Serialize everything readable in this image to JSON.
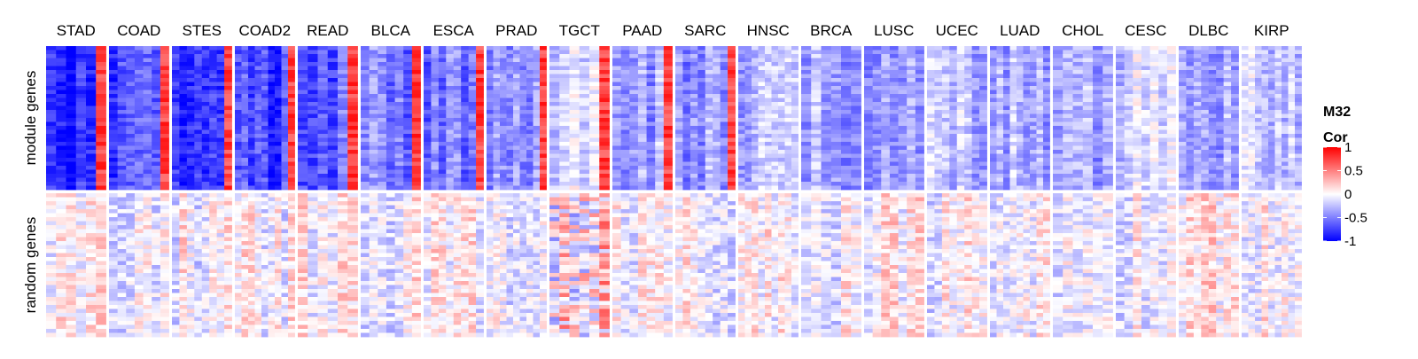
{
  "chart_data": {
    "type": "heatmap",
    "title": "",
    "columns": [
      "STAD",
      "COAD",
      "STES",
      "COAD2",
      "READ",
      "BLCA",
      "ESCA",
      "PRAD",
      "TGCT",
      "PAAD",
      "SARC",
      "HNSC",
      "BRCA",
      "LUSC",
      "UCEC",
      "LUAD",
      "CHOL",
      "CESC",
      "DLBC",
      "KIRP"
    ],
    "row_groups": [
      {
        "label": "module genes",
        "mean_cor": [
          -0.85,
          -0.75,
          -0.8,
          -0.75,
          -0.6,
          -0.5,
          -0.55,
          -0.45,
          -0.2,
          -0.35,
          -0.4,
          -0.3,
          -0.35,
          -0.35,
          -0.3,
          -0.3,
          -0.35,
          -0.2,
          -0.3,
          -0.2
        ]
      },
      {
        "label": "random genes",
        "mean_cor": [
          0.0,
          0.0,
          0.0,
          0.0,
          0.0,
          0.0,
          0.0,
          0.0,
          0.1,
          0.0,
          0.0,
          0.0,
          0.0,
          0.0,
          0.0,
          0.0,
          0.05,
          0.0,
          0.05,
          0.0
        ]
      }
    ],
    "legend": {
      "title_line1": "M32",
      "title_line2": "Cor",
      "ticks": [
        "1",
        "0.5",
        "0",
        "-0.5",
        "-1"
      ],
      "tick_values": [
        1,
        0.5,
        0,
        -0.5,
        -1
      ],
      "range": [
        -1,
        1
      ],
      "colors": {
        "low": "#0000ff",
        "mid": "#ffffff",
        "high": "#ff0000"
      },
      "placement": "right"
    }
  }
}
